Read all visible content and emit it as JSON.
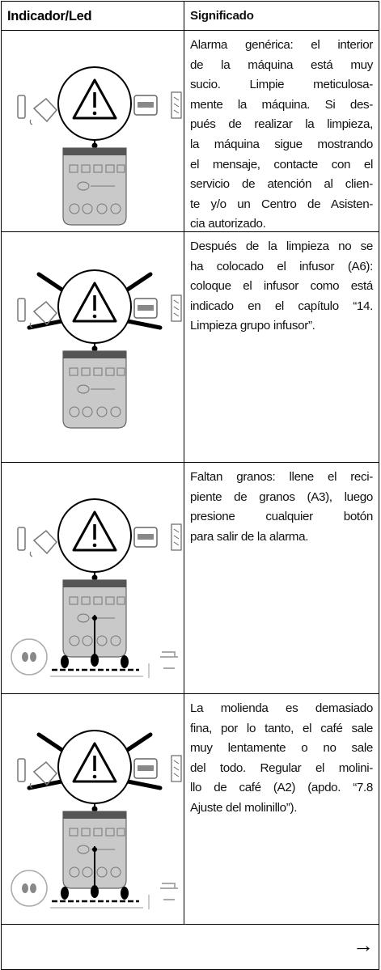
{
  "header": {
    "columns": [
      "Indicador/Led",
      "Significado"
    ]
  },
  "rows": [
    {
      "text_lines": [
        "Alarma genérica: el interior",
        "de la máquina está muy",
        "sucio. Limpie meticulosa-",
        "mente la máquina. Si des-",
        "pués de realizar la limpieza,",
        "la máquina sigue mostrando",
        "el mensaje, contacte con el",
        "servicio de atención al clien-",
        "te y/o un Centro de Asisten-",
        "cia autorizado."
      ]
    },
    {
      "text_lines": [
        "Después de la limpieza no se",
        "ha colocado el infusor (A6):",
        "coloque el infusor como está",
        "indicado en el capítulo “14.",
        "Limpieza grupo infusor”."
      ]
    },
    {
      "text_lines": [
        "Faltan granos: llene el reci-",
        "piente de granos (A3), luego",
        "presione cualquier botón",
        "para salir de la alarma."
      ]
    },
    {
      "text_lines": [
        "La molienda es demasiado",
        "fina, por lo tanto, el café sale",
        "muy lentamente o no sale",
        "del todo. Regular el molini-",
        "llo de café (A2) (apdo. “7.8",
        "Ajuste del molinillo”)."
      ]
    }
  ],
  "footer": {
    "arrow": "→"
  }
}
